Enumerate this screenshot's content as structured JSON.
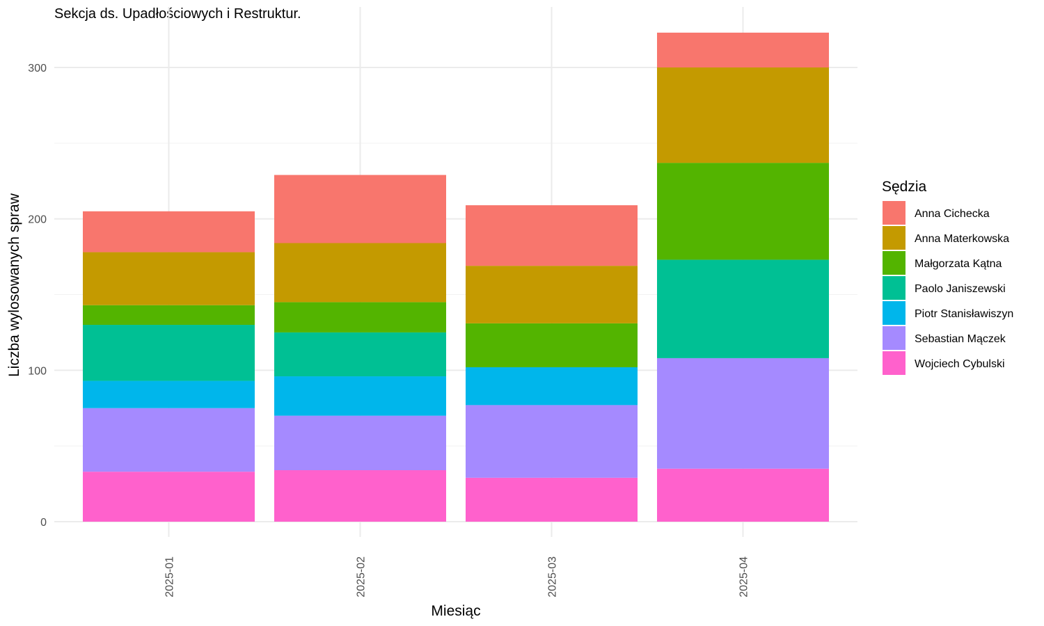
{
  "chart_data": {
    "type": "bar",
    "stacked": true,
    "title": "Sekcja ds. Upadłościowych i Restruktur.",
    "xlabel": "Miesiąc",
    "ylabel": "Liczba wylosowanych spraw",
    "legend_title": "Sędzia",
    "legend_position": "right",
    "grid": true,
    "ylim": [
      0,
      325
    ],
    "yticks": [
      0,
      100,
      200,
      300
    ],
    "categories": [
      "2025-01",
      "2025-02",
      "2025-03",
      "2025-04"
    ],
    "series": [
      {
        "name": "Wojciech Cybulski",
        "color": "#FF61CC",
        "values": [
          33,
          34,
          29,
          35
        ]
      },
      {
        "name": "Sebastian Mączek",
        "color": "#A58AFF",
        "values": [
          42,
          36,
          48,
          73
        ]
      },
      {
        "name": "Piotr Stanisławiszyn",
        "color": "#00B6EB",
        "values": [
          18,
          26,
          25,
          0
        ]
      },
      {
        "name": "Paolo Janiszewski",
        "color": "#00C094",
        "values": [
          37,
          29,
          0,
          65
        ]
      },
      {
        "name": "Małgorzata Kątna",
        "color": "#53B400",
        "values": [
          13,
          20,
          29,
          64
        ]
      },
      {
        "name": "Anna Materkowska",
        "color": "#C49A00",
        "values": [
          35,
          39,
          38,
          63
        ]
      },
      {
        "name": "Anna Cichecka",
        "color": "#F8766D",
        "values": [
          27,
          45,
          40,
          23
        ]
      }
    ],
    "legend_order": [
      "Anna Cichecka",
      "Anna Materkowska",
      "Małgorzata Kątna",
      "Paolo Janiszewski",
      "Piotr Stanisławiszyn",
      "Sebastian Mączek",
      "Wojciech Cybulski"
    ]
  }
}
